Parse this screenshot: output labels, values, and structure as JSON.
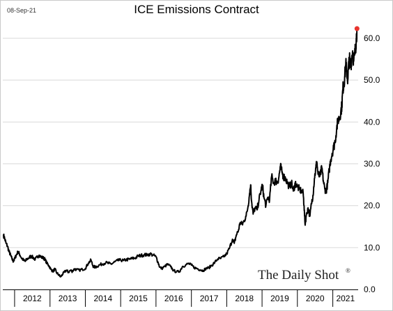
{
  "header": {
    "date": "08-Sep-21",
    "title": "ICE Emissions Contract"
  },
  "brand": {
    "name": "The Daily Shot",
    "mark": "®"
  },
  "colors": {
    "line": "#000000",
    "last_point": "#e8342e",
    "grid": "#d9d9d9"
  },
  "chart_data": {
    "type": "line",
    "title": "ICE Emissions Contract",
    "xlabel": "",
    "ylabel": "",
    "x_tick_labels": [
      "2012",
      "2013",
      "2014",
      "2015",
      "2016",
      "2017",
      "2018",
      "2019",
      "2020",
      "2021"
    ],
    "y_tick_labels": [
      "0.0",
      "10.0",
      "20.0",
      "30.0",
      "40.0",
      "50.0",
      "60.0"
    ],
    "ylim": [
      0,
      65
    ],
    "y_axis_side": "right",
    "grid": "horizontal",
    "last_point": {
      "x": "2021-09-08",
      "y": 62.3
    },
    "series": [
      {
        "values": [
          [
            "2011-09-08",
            13.0
          ],
          [
            "2011-09-20",
            12.2
          ],
          [
            "2011-10-05",
            11.0
          ],
          [
            "2011-10-20",
            10.3
          ],
          [
            "2011-11-05",
            9.0
          ],
          [
            "2011-11-20",
            8.2
          ],
          [
            "2011-12-05",
            7.3
          ],
          [
            "2011-12-20",
            6.7
          ],
          [
            "2012-01-05",
            7.5
          ],
          [
            "2012-01-20",
            8.3
          ],
          [
            "2012-02-05",
            9.0
          ],
          [
            "2012-02-20",
            8.5
          ],
          [
            "2012-03-10",
            7.6
          ],
          [
            "2012-04-01",
            7.0
          ],
          [
            "2012-04-20",
            6.7
          ],
          [
            "2012-05-10",
            7.3
          ],
          [
            "2012-06-01",
            7.6
          ],
          [
            "2012-06-20",
            8.0
          ],
          [
            "2012-07-10",
            7.6
          ],
          [
            "2012-08-01",
            7.2
          ],
          [
            "2012-08-20",
            7.7
          ],
          [
            "2012-09-10",
            8.2
          ],
          [
            "2012-10-01",
            7.7
          ],
          [
            "2012-10-20",
            7.6
          ],
          [
            "2012-11-10",
            7.2
          ],
          [
            "2012-12-01",
            6.2
          ],
          [
            "2012-12-20",
            5.7
          ],
          [
            "2013-01-10",
            4.8
          ],
          [
            "2013-02-01",
            4.3
          ],
          [
            "2013-02-20",
            4.9
          ],
          [
            "2013-03-10",
            4.0
          ],
          [
            "2013-04-01",
            3.5
          ],
          [
            "2013-04-20",
            3.0
          ],
          [
            "2013-05-10",
            3.6
          ],
          [
            "2013-06-01",
            4.2
          ],
          [
            "2013-06-20",
            4.6
          ],
          [
            "2013-07-10",
            4.1
          ],
          [
            "2013-08-01",
            4.6
          ],
          [
            "2013-08-20",
            4.3
          ],
          [
            "2013-09-10",
            4.9
          ],
          [
            "2013-10-01",
            4.7
          ],
          [
            "2013-11-01",
            4.6
          ],
          [
            "2013-12-01",
            4.8
          ],
          [
            "2014-01-01",
            5.0
          ],
          [
            "2014-02-01",
            6.3
          ],
          [
            "2014-03-01",
            7.0
          ],
          [
            "2014-03-20",
            5.6
          ],
          [
            "2014-04-10",
            5.3
          ],
          [
            "2014-05-01",
            5.5
          ],
          [
            "2014-06-01",
            5.9
          ],
          [
            "2014-07-01",
            6.1
          ],
          [
            "2014-08-01",
            6.4
          ],
          [
            "2014-09-01",
            6.2
          ],
          [
            "2014-10-01",
            6.1
          ],
          [
            "2014-11-01",
            6.6
          ],
          [
            "2014-12-01",
            6.9
          ],
          [
            "2015-01-01",
            7.0
          ],
          [
            "2015-02-01",
            6.9
          ],
          [
            "2015-03-01",
            7.1
          ],
          [
            "2015-04-01",
            7.2
          ],
          [
            "2015-05-01",
            7.4
          ],
          [
            "2015-06-01",
            7.5
          ],
          [
            "2015-07-01",
            8.0
          ],
          [
            "2015-08-01",
            8.1
          ],
          [
            "2015-09-01",
            8.3
          ],
          [
            "2015-10-01",
            8.2
          ],
          [
            "2015-11-01",
            8.5
          ],
          [
            "2015-12-01",
            8.2
          ],
          [
            "2016-01-01",
            7.8
          ],
          [
            "2016-01-20",
            6.6
          ],
          [
            "2016-02-10",
            5.3
          ],
          [
            "2016-03-01",
            5.0
          ],
          [
            "2016-04-01",
            5.5
          ],
          [
            "2016-05-01",
            6.0
          ],
          [
            "2016-06-01",
            5.4
          ],
          [
            "2016-07-01",
            4.5
          ],
          [
            "2016-08-01",
            4.2
          ],
          [
            "2016-09-01",
            4.3
          ],
          [
            "2016-10-01",
            5.5
          ],
          [
            "2016-11-01",
            5.8
          ],
          [
            "2016-12-01",
            6.2
          ],
          [
            "2017-01-01",
            5.8
          ],
          [
            "2017-02-01",
            5.2
          ],
          [
            "2017-03-01",
            5.0
          ],
          [
            "2017-04-01",
            4.7
          ],
          [
            "2017-05-01",
            4.5
          ],
          [
            "2017-06-01",
            5.0
          ],
          [
            "2017-07-01",
            5.2
          ],
          [
            "2017-08-01",
            5.8
          ],
          [
            "2017-09-01",
            6.5
          ],
          [
            "2017-10-01",
            7.3
          ],
          [
            "2017-11-01",
            7.4
          ],
          [
            "2017-12-01",
            7.8
          ],
          [
            "2018-01-01",
            8.5
          ],
          [
            "2018-02-01",
            10.0
          ],
          [
            "2018-03-01",
            12.0
          ],
          [
            "2018-03-20",
            11.0
          ],
          [
            "2018-04-10",
            13.0
          ],
          [
            "2018-05-01",
            14.0
          ],
          [
            "2018-05-20",
            16.0
          ],
          [
            "2018-06-10",
            15.5
          ],
          [
            "2018-07-01",
            16.5
          ],
          [
            "2018-07-20",
            17.5
          ],
          [
            "2018-08-10",
            20.0
          ],
          [
            "2018-08-25",
            23.0
          ],
          [
            "2018-09-05",
            25.0
          ],
          [
            "2018-09-15",
            21.0
          ],
          [
            "2018-10-01",
            18.0
          ],
          [
            "2018-10-20",
            19.5
          ],
          [
            "2018-11-10",
            19.0
          ],
          [
            "2018-12-01",
            21.5
          ],
          [
            "2018-12-20",
            23.5
          ],
          [
            "2019-01-05",
            25.0
          ],
          [
            "2019-01-20",
            22.0
          ],
          [
            "2019-02-10",
            20.0
          ],
          [
            "2019-03-01",
            22.0
          ],
          [
            "2019-03-20",
            21.5
          ],
          [
            "2019-04-10",
            27.0
          ],
          [
            "2019-05-01",
            25.5
          ],
          [
            "2019-05-20",
            26.0
          ],
          [
            "2019-06-10",
            25.5
          ],
          [
            "2019-06-25",
            27.0
          ],
          [
            "2019-07-10",
            29.5
          ],
          [
            "2019-07-25",
            28.0
          ],
          [
            "2019-08-10",
            27.0
          ],
          [
            "2019-09-01",
            26.5
          ],
          [
            "2019-09-20",
            25.5
          ],
          [
            "2019-10-10",
            24.5
          ],
          [
            "2019-11-01",
            25.5
          ],
          [
            "2019-11-20",
            23.5
          ],
          [
            "2019-12-10",
            25.5
          ],
          [
            "2020-01-01",
            24.5
          ],
          [
            "2020-01-20",
            24.0
          ],
          [
            "2020-02-10",
            23.5
          ],
          [
            "2020-03-01",
            23.0
          ],
          [
            "2020-03-10",
            20.0
          ],
          [
            "2020-03-20",
            15.5
          ],
          [
            "2020-04-01",
            17.5
          ],
          [
            "2020-04-20",
            19.5
          ],
          [
            "2020-05-10",
            17.5
          ],
          [
            "2020-05-25",
            20.5
          ],
          [
            "2020-06-10",
            22.5
          ],
          [
            "2020-06-25",
            26.5
          ],
          [
            "2020-07-10",
            29.0
          ],
          [
            "2020-07-20",
            30.5
          ],
          [
            "2020-08-01",
            27.5
          ],
          [
            "2020-08-20",
            27.0
          ],
          [
            "2020-09-10",
            29.0
          ],
          [
            "2020-09-25",
            26.0
          ],
          [
            "2020-10-10",
            24.0
          ],
          [
            "2020-10-25",
            23.5
          ],
          [
            "2020-11-10",
            25.5
          ],
          [
            "2020-11-25",
            28.5
          ],
          [
            "2020-12-10",
            31.0
          ],
          [
            "2020-12-25",
            32.5
          ],
          [
            "2021-01-10",
            34.0
          ],
          [
            "2021-01-25",
            35.5
          ],
          [
            "2021-02-10",
            38.5
          ],
          [
            "2021-02-25",
            40.5
          ],
          [
            "2021-03-10",
            41.0
          ],
          [
            "2021-03-25",
            42.5
          ],
          [
            "2021-04-05",
            44.0
          ],
          [
            "2021-04-15",
            48.0
          ],
          [
            "2021-04-25",
            49.0
          ],
          [
            "2021-05-05",
            51.0
          ],
          [
            "2021-05-15",
            54.0
          ],
          [
            "2021-05-25",
            52.0
          ],
          [
            "2021-06-05",
            50.0
          ],
          [
            "2021-06-15",
            54.0
          ],
          [
            "2021-06-25",
            55.0
          ],
          [
            "2021-07-05",
            53.0
          ],
          [
            "2021-07-15",
            55.5
          ],
          [
            "2021-07-25",
            57.0
          ],
          [
            "2021-08-05",
            54.5
          ],
          [
            "2021-08-15",
            56.0
          ],
          [
            "2021-08-25",
            58.0
          ],
          [
            "2021-09-01",
            60.0
          ],
          [
            "2021-09-08",
            62.3
          ]
        ]
      }
    ]
  }
}
